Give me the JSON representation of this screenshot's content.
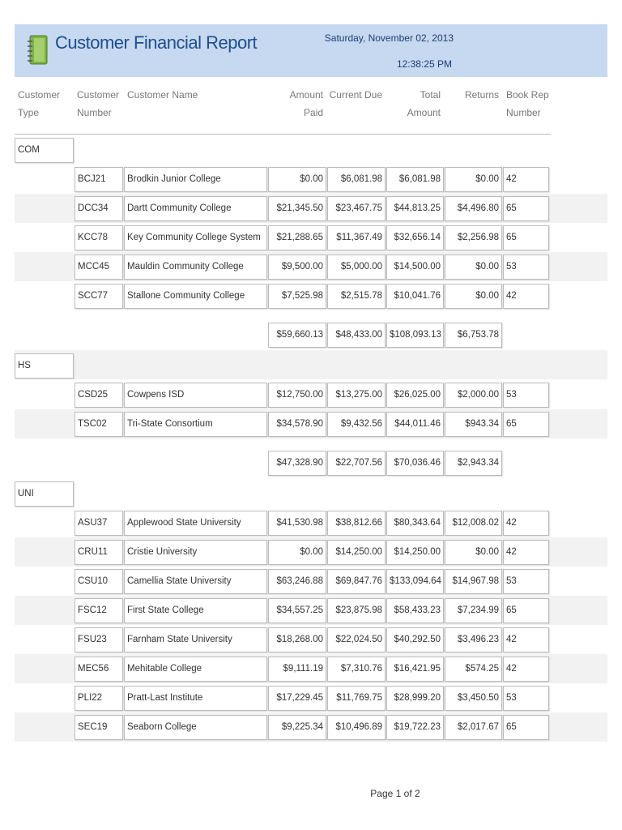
{
  "header": {
    "title": "Customer Financial Report",
    "date": "Saturday, November 02, 2013",
    "time": "12:38:25 PM"
  },
  "columns": [
    "Customer Type",
    "Customer Number",
    "Customer Name",
    "Amount Paid",
    "Current Due",
    "Total Amount",
    "Returns",
    "Book Rep Number"
  ],
  "groups": [
    {
      "type": "COM",
      "rows": [
        [
          "BCJ21",
          "Brodkin Junior College",
          "$0.00",
          "$6,081.98",
          "$6,081.98",
          "$0.00",
          "42"
        ],
        [
          "DCC34",
          "Dartt Community College",
          "$21,345.50",
          "$23,467.75",
          "$44,813.25",
          "$4,496.80",
          "65"
        ],
        [
          "KCC78",
          "Key Community College System",
          "$21,288.65",
          "$11,367.49",
          "$32,656.14",
          "$2,256.98",
          "65"
        ],
        [
          "MCC45",
          "Mauldin Community College",
          "$9,500.00",
          "$5,000.00",
          "$14,500.00",
          "$0.00",
          "53"
        ],
        [
          "SCC77",
          "Stallone Community College",
          "$7,525.98",
          "$2,515.78",
          "$10,041.76",
          "$0.00",
          "42"
        ]
      ],
      "totals": [
        "$59,660.13",
        "$48,433.00",
        "$108,093.13",
        "$6,753.78"
      ]
    },
    {
      "type": "HS",
      "rows": [
        [
          "CSD25",
          "Cowpens ISD",
          "$12,750.00",
          "$13,275.00",
          "$26,025.00",
          "$2,000.00",
          "53"
        ],
        [
          "TSC02",
          "Tri-State Consortium",
          "$34,578.90",
          "$9,432.56",
          "$44,011.46",
          "$943.34",
          "65"
        ]
      ],
      "totals": [
        "$47,328.90",
        "$22,707.56",
        "$70,036.46",
        "$2,943.34"
      ]
    },
    {
      "type": "UNI",
      "rows": [
        [
          "ASU37",
          "Applewood State University",
          "$41,530.98",
          "$38,812.66",
          "$80,343.64",
          "$12,008.02",
          "42"
        ],
        [
          "CRU11",
          "Cristie University",
          "$0.00",
          "$14,250.00",
          "$14,250.00",
          "$0.00",
          "42"
        ],
        [
          "CSU10",
          "Camellia State University",
          "$63,246.88",
          "$69,847.76",
          "$133,094.64",
          "$14,967.98",
          "53"
        ],
        [
          "FSC12",
          "First State College",
          "$34,557.25",
          "$23,875.98",
          "$58,433.23",
          "$7,234.99",
          "65"
        ],
        [
          "FSU23",
          "Farnham State University",
          "$18,268.00",
          "$22,024.50",
          "$40,292.50",
          "$3,496.23",
          "42"
        ],
        [
          "MEC56",
          "Mehitable College",
          "$9,111.19",
          "$7,310.76",
          "$16,421.95",
          "$574.25",
          "42"
        ],
        [
          "PLI22",
          "Pratt-Last Institute",
          "$17,229.45",
          "$11,769.75",
          "$28,999.20",
          "$3,450.50",
          "53"
        ],
        [
          "SEC19",
          "Seaborn College",
          "$9,225.34",
          "$10,496.89",
          "$19,722.23",
          "$2,017.67",
          "65"
        ]
      ]
    }
  ],
  "footer": {
    "page": "Page 1 of 2"
  }
}
